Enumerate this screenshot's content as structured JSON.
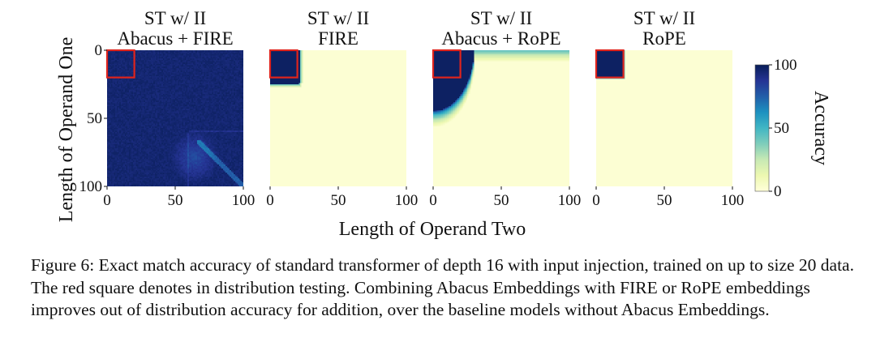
{
  "figure": {
    "xlabel": "Length of Operand Two",
    "ylabel": "Length of Operand One",
    "colorbar_label": "Accuracy"
  },
  "caption": "Figure 6:  Exact match accuracy of standard transformer of depth 16 with input injection, trained on up to size 20 data. The red square denotes in distribution testing. Combining Abacus Embeddings with FIRE or RoPE embeddings improves out of distribution accuracy for addition, over the baseline models without Abacus Embeddings.",
  "colors": {
    "in_distribution_square": "#e0241c",
    "colormap": [
      "#ffffd9",
      "#edf8b1",
      "#c7e9b4",
      "#7fcdbb",
      "#41b6c4",
      "#1d91c0",
      "#225ea8",
      "#253494",
      "#081d58"
    ]
  },
  "chart_data": [
    {
      "type": "heatmap",
      "title_line1": "ST w/ II",
      "title_line2": "Abacus + FIRE",
      "xlim": [
        0,
        100
      ],
      "ylim": [
        0,
        100
      ],
      "xticks": [
        0,
        50,
        100
      ],
      "yticks": [
        0,
        50,
        100
      ],
      "in_distribution_box": [
        0,
        20
      ],
      "accuracy_regions": [
        {
          "region": "nearly all cells",
          "accuracy": 95
        },
        {
          "region": "operand one 60-100, operand two 50-80",
          "accuracy": 80
        },
        {
          "region": "diagonal operand one ≈ operand two > 70",
          "accuracy": 70
        }
      ]
    },
    {
      "type": "heatmap",
      "title_line1": "ST w/ II",
      "title_line2": "FIRE",
      "xlim": [
        0,
        100
      ],
      "ylim": [
        0,
        100
      ],
      "xticks": [
        0,
        50,
        100
      ],
      "yticks": [],
      "in_distribution_box": [
        0,
        20
      ],
      "accuracy_regions": [
        {
          "region": "operand one ≤ 25, operand two ≤ 20",
          "accuracy": 100
        },
        {
          "region": "elsewhere",
          "accuracy": 0
        }
      ]
    },
    {
      "type": "heatmap",
      "title_line1": "ST w/ II",
      "title_line2": "Abacus + RoPE",
      "xlim": [
        0,
        100
      ],
      "ylim": [
        0,
        100
      ],
      "xticks": [
        0,
        50,
        100
      ],
      "yticks": [],
      "in_distribution_box": [
        0,
        20
      ],
      "accuracy_regions": [
        {
          "region": "curved region up to operand one ≈ 45",
          "accuracy": 100
        },
        {
          "region": "elsewhere",
          "accuracy": 0
        }
      ]
    },
    {
      "type": "heatmap",
      "title_line1": "ST w/ II",
      "title_line2": "RoPE",
      "xlim": [
        0,
        100
      ],
      "ylim": [
        0,
        100
      ],
      "xticks": [
        0,
        50,
        100
      ],
      "yticks": [],
      "in_distribution_box": [
        0,
        20
      ],
      "accuracy_regions": [
        {
          "region": "operand one ≤ 20, operand two ≤ 20",
          "accuracy": 100
        },
        {
          "region": "elsewhere",
          "accuracy": 0
        }
      ]
    },
    {
      "type": "colorbar",
      "range": [
        0,
        100
      ],
      "ticks": [
        0,
        50,
        100
      ]
    }
  ]
}
